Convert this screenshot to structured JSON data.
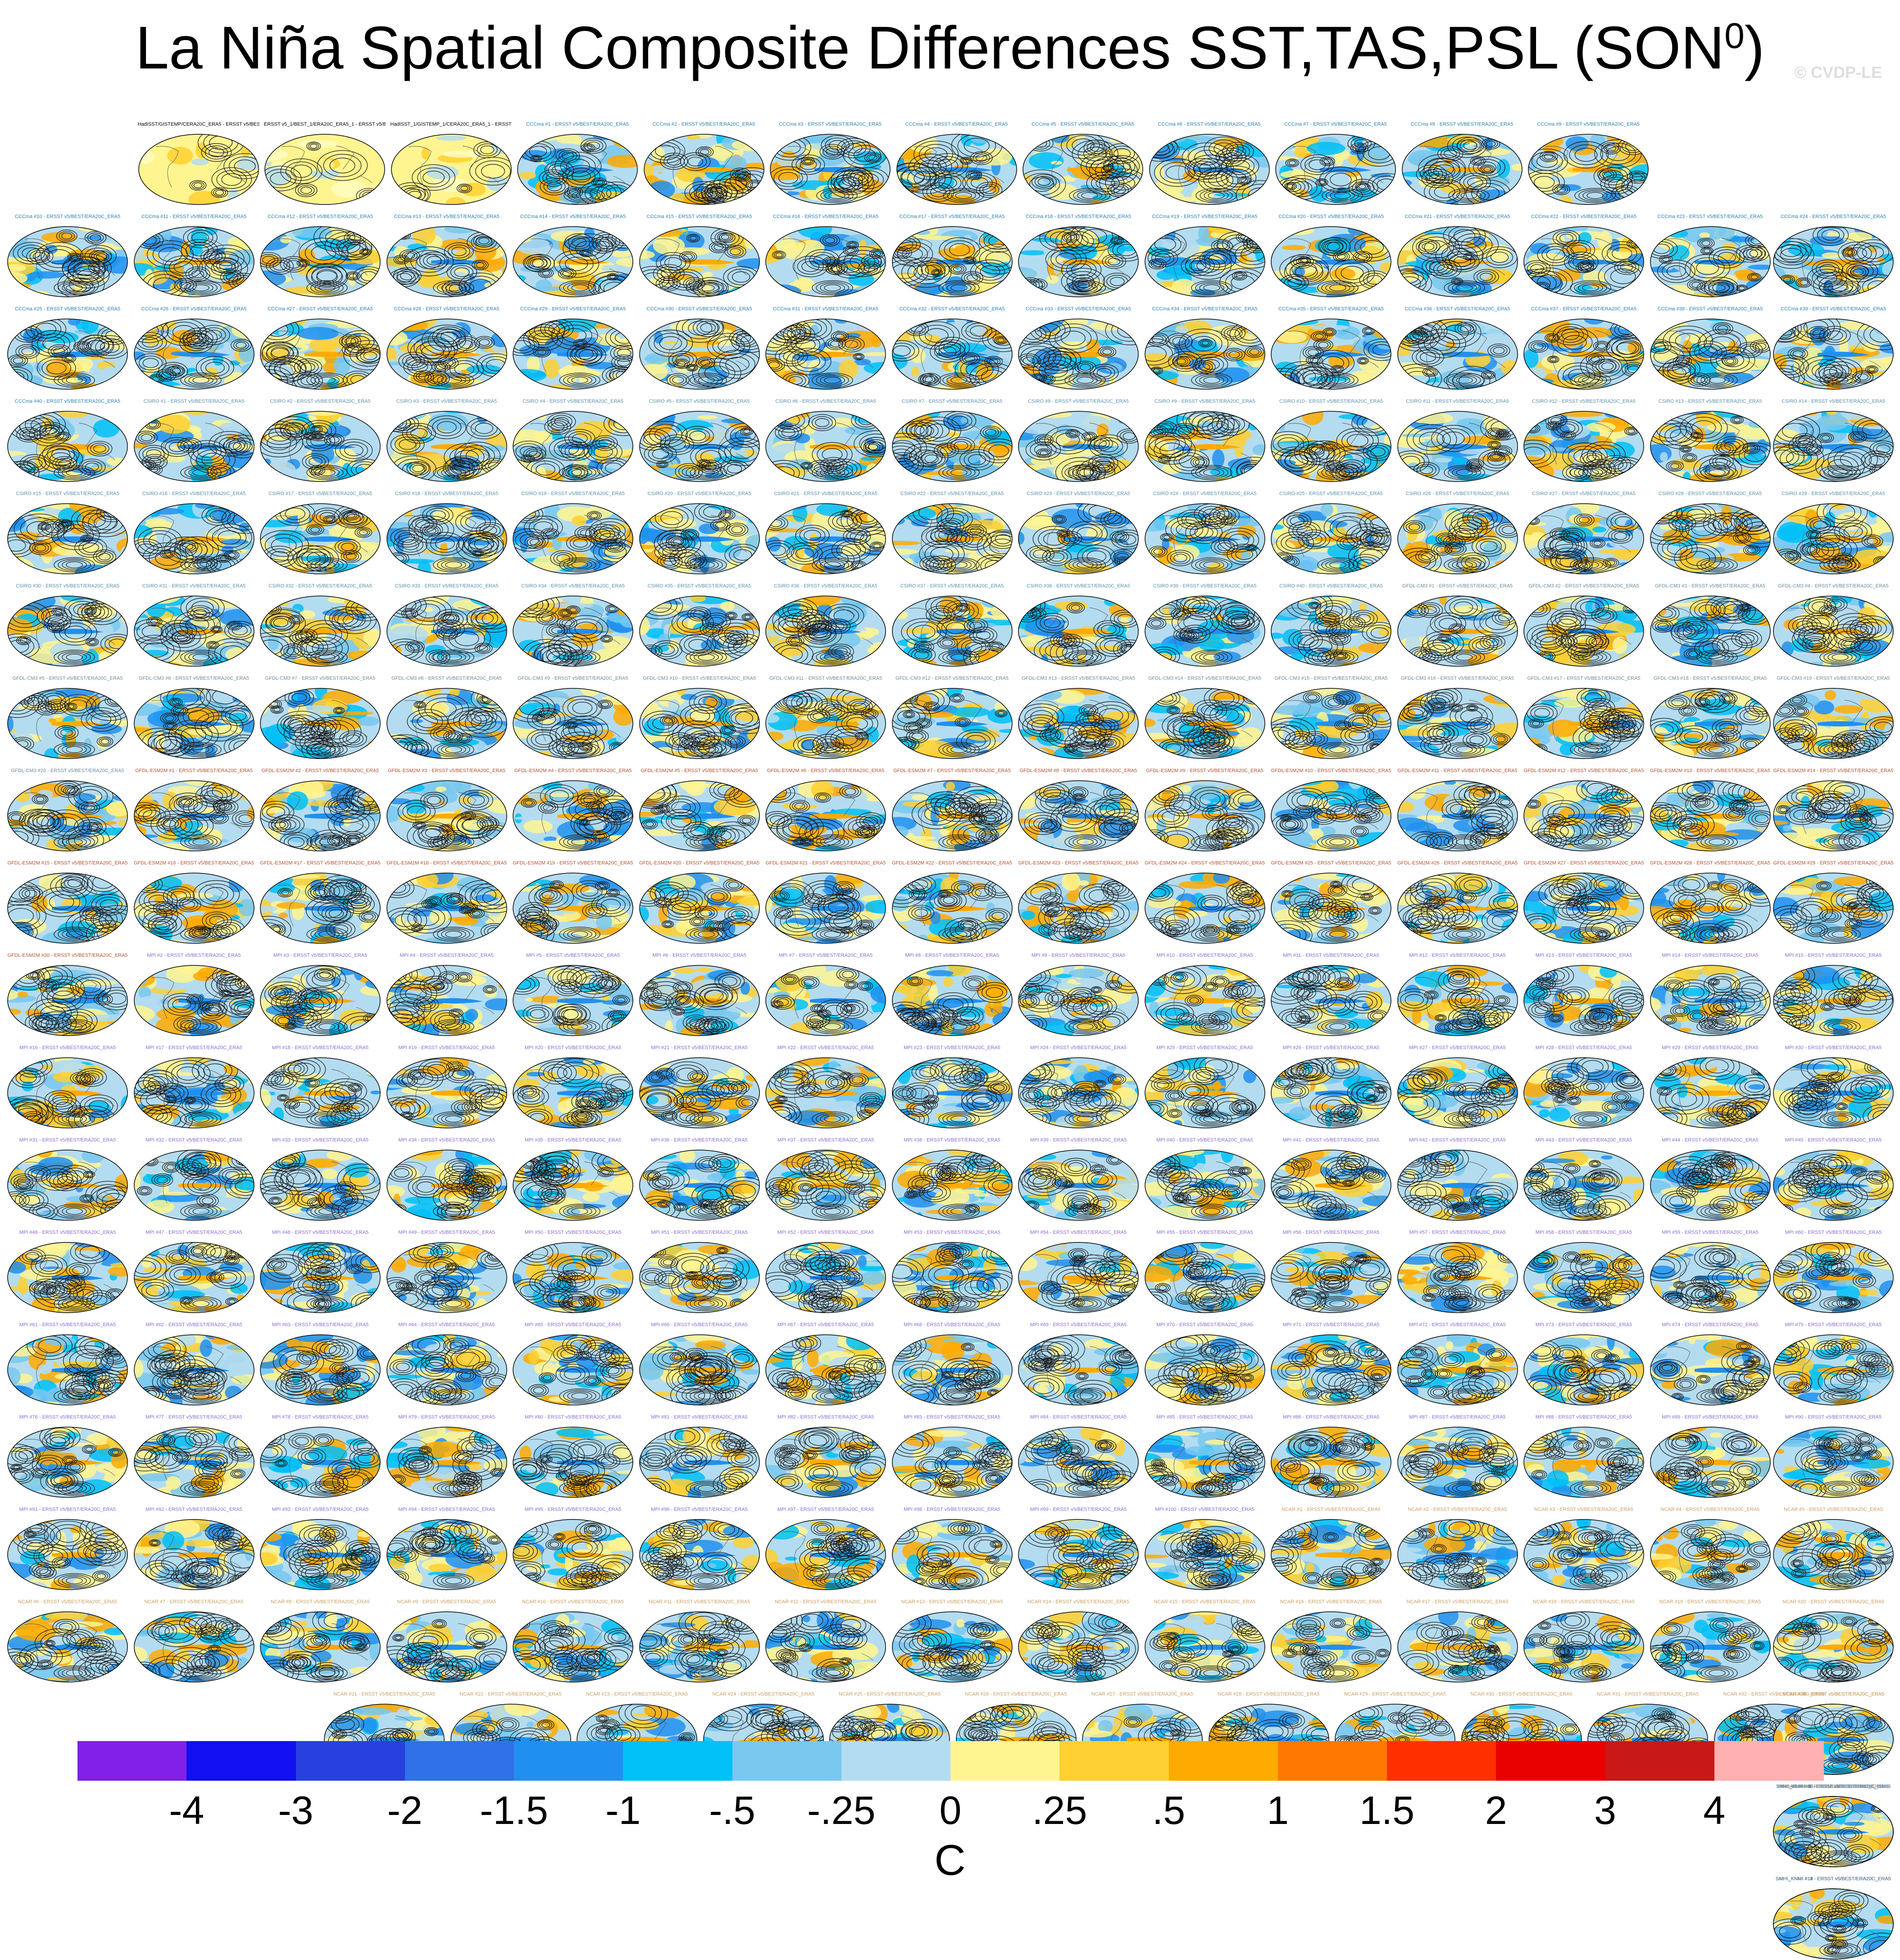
{
  "title": "La Niña Spatial Composite Differences SST,TAS,PSL (SON",
  "title_sup": "0",
  "title_close": ")",
  "watermark": "© CVDP-LE",
  "chart_data": {
    "type": "heatmap",
    "description_of_layout": "grid of global map panels",
    "columns": 15,
    "panels": [
      {
        "label": "HadISST/GISTEMP/CERA20C_ERA5 - ERSST v5/BEST/ERA20C_ERA5",
        "group": "obs"
      },
      {
        "label": "ERSST v5_1/BEST_1/ERA20C_ERA5_1 - ERSST v5/BEST/ERA20C_ERA5",
        "group": "obs"
      },
      {
        "label": "HadISST_1/GISTEMP_1/CERA20C_ERA5_1 - ERSST v5/BEST/ERA20C_ERA5",
        "group": "obs"
      },
      {
        "label": "CCCma #1 - ERSST v5/BEST/ERA20C_ERA5",
        "group": "CCCma"
      },
      {
        "label": "CCCma #2 - ERSST v5/BEST/ERA20C_ERA5",
        "group": "CCCma"
      },
      {
        "label": "CCCma #3 - ERSST v5/BEST/ERA20C_ERA5",
        "group": "CCCma"
      },
      {
        "label": "CCCma #4 - ERSST v5/BEST/ERA20C_ERA5",
        "group": "CCCma"
      },
      {
        "label": "CCCma #5 - ERSST v5/BEST/ERA20C_ERA5",
        "group": "CCCma"
      },
      {
        "label": "CCCma #6 - ERSST v5/BEST/ERA20C_ERA5",
        "group": "CCCma"
      },
      {
        "label": "CCCma #7 - ERSST v5/BEST/ERA20C_ERA5",
        "group": "CCCma"
      },
      {
        "label": "CCCma #8 - ERSST v5/BEST/ERA20C_ERA5",
        "group": "CCCma"
      },
      {
        "label": "CCCma #9 - ERSST v5/BEST/ERA20C_ERA5",
        "group": "CCCma"
      },
      {
        "label": "CCCma #10 - ERSST v5/BEST/ERA20C_ERA5",
        "group": "CCCma"
      },
      {
        "label": "CCCma #11 - ERSST v5/BEST/ERA20C_ERA5",
        "group": "CCCma"
      }
    ],
    "groups": [
      {
        "name": "CCCma",
        "first": 12,
        "last": 40,
        "color": "#2a7fb0"
      },
      {
        "name": "CSIRO",
        "first": 1,
        "last": 40,
        "color": "#5a8fa8"
      },
      {
        "name": "GFDL-CM3",
        "first": 1,
        "last": 20,
        "color": "#6a8a9a"
      },
      {
        "name": "GFDL-ESM2M",
        "first": 1,
        "last": 30,
        "color": "#b05030"
      },
      {
        "name": "MPI",
        "first": 2,
        "last": 100,
        "color": "#8a6ad0"
      },
      {
        "name": "NCAR",
        "first": 1,
        "last": 40,
        "color": "#c8a060"
      },
      {
        "name": "SMHI_KNMI",
        "first": 1,
        "last": 16,
        "color": "#6a8aa8"
      }
    ],
    "label_suffix": " - ERSST v5/BEST/ERA20C_ERA5",
    "colorbar": {
      "levels": [
        "-4",
        "-3",
        "-2",
        "-1.5",
        "-1",
        "-.5",
        "-.25",
        "0",
        ".25",
        ".5",
        "1",
        "1.5",
        "2",
        "3",
        "4"
      ],
      "colors": [
        "#8020e8",
        "#1010f0",
        "#2840e0",
        "#3070e8",
        "#2090f0",
        "#00c0f8",
        "#78c8f0",
        "#b4dcf0",
        "#fff590",
        "#ffd030",
        "#ffaa00",
        "#ff7800",
        "#ff3000",
        "#e80000",
        "#c81818",
        "#ffb0b0"
      ],
      "units": "C"
    }
  }
}
